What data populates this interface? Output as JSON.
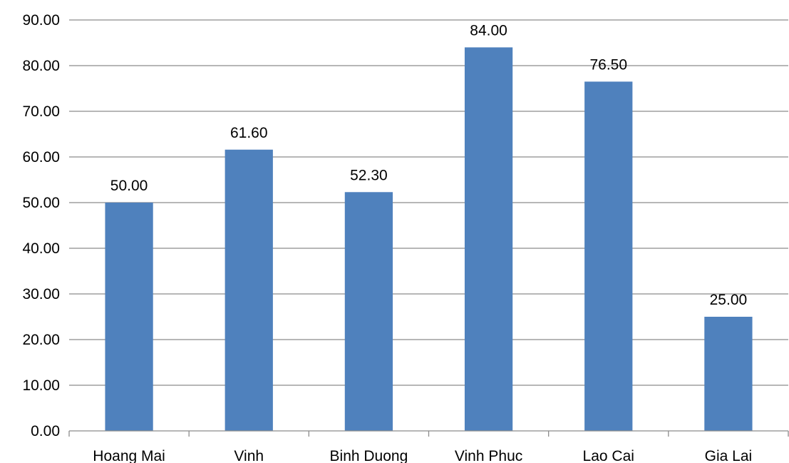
{
  "chart_data": {
    "type": "bar",
    "title": "",
    "xlabel": "",
    "ylabel": "",
    "categories": [
      "Hoang Mai",
      "Vinh",
      "Binh Duong",
      "Vinh Phuc",
      "Lao Cai",
      "Gia Lai"
    ],
    "values": [
      50.0,
      61.6,
      52.3,
      84.0,
      76.5,
      25.0
    ],
    "value_labels": [
      "50.00",
      "61.60",
      "52.30",
      "84.00",
      "76.50",
      "25.00"
    ],
    "ylim": [
      0,
      90
    ],
    "yticks": [
      "0.00",
      "10.00",
      "20.00",
      "30.00",
      "40.00",
      "50.00",
      "60.00",
      "70.00",
      "80.00",
      "90.00"
    ],
    "grid": true,
    "legend": "none",
    "bar_color": "#4f81bd",
    "grid_color": "#8c8c8c"
  }
}
